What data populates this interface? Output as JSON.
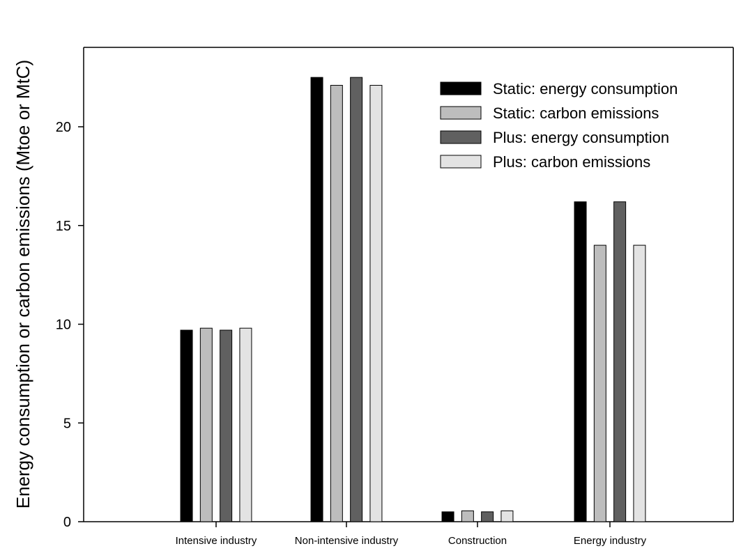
{
  "chart_data": {
    "type": "bar",
    "title": "",
    "xlabel": "",
    "ylabel": "Energy consumption or carbon emissions (Mtoe or MtC)",
    "ylim": [
      0,
      24
    ],
    "yticks": [
      0,
      5,
      10,
      15,
      20
    ],
    "categories": [
      "Intensive industry",
      "Non-intensive industry",
      "Construction",
      "Energy industry"
    ],
    "series": [
      {
        "name": "Static: energy consumption",
        "color": "#000000",
        "values": [
          9.7,
          22.5,
          0.5,
          16.2
        ]
      },
      {
        "name": "Static: carbon emissions",
        "color": "#bdbdbd",
        "values": [
          9.8,
          22.1,
          0.55,
          14.0
        ]
      },
      {
        "name": "Plus: energy consumption",
        "color": "#606060",
        "values": [
          9.7,
          22.5,
          0.5,
          16.2
        ]
      },
      {
        "name": "Plus: carbon emissions",
        "color": "#e3e3e3",
        "values": [
          9.8,
          22.1,
          0.55,
          14.0
        ]
      }
    ],
    "legend_position": "top-right",
    "grid": false
  }
}
